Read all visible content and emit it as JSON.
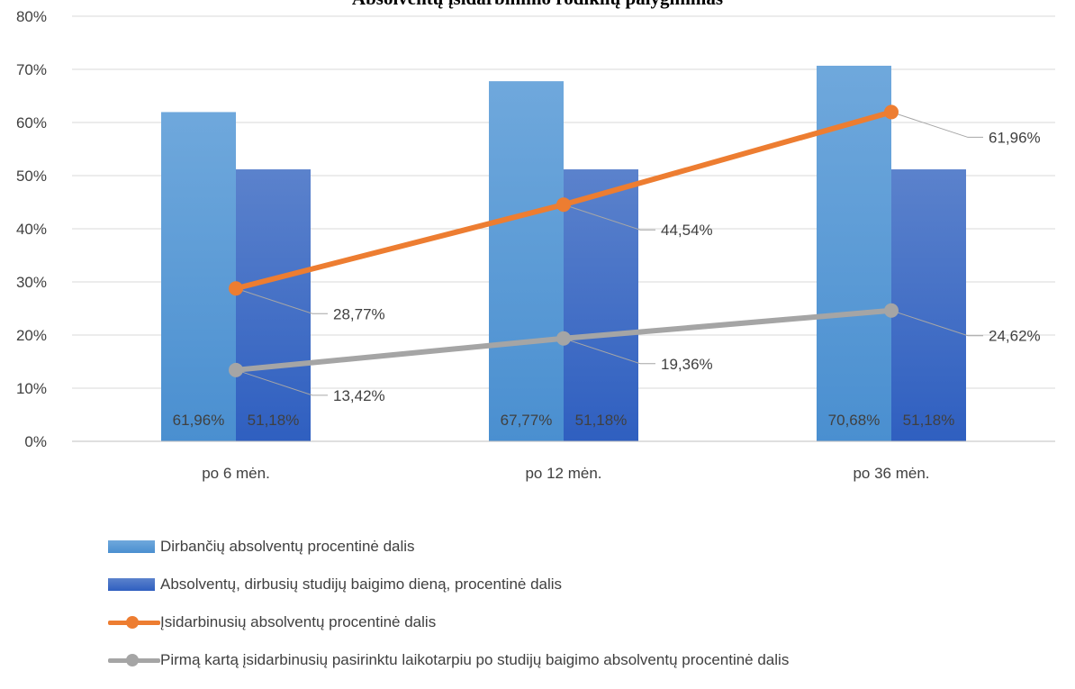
{
  "chart_data": {
    "type": "bar",
    "title": "Absolventų įsidarbinimo rodiklių palyginimas",
    "categories": [
      "po 6 mėn.",
      "po 12 mėn.",
      "po 36 mėn."
    ],
    "ylim": [
      0,
      80
    ],
    "yticks": [
      "0%",
      "10%",
      "20%",
      "30%",
      "40%",
      "50%",
      "60%",
      "70%",
      "80%"
    ],
    "grid": true,
    "legend_position": "bottom",
    "series": [
      {
        "name": "Dirbančių absolventų procentinė dalis",
        "kind": "bar",
        "color": "#5B9BD5",
        "values": [
          61.96,
          67.77,
          70.68
        ],
        "labels": [
          "61,96%",
          "67,77%",
          "70,68%"
        ]
      },
      {
        "name": "Absolventų, dirbusių studijų baigimo dieną, procentinė dalis",
        "kind": "bar",
        "color": "#4472C4",
        "values": [
          51.18,
          51.18,
          51.18
        ],
        "labels": [
          "51,18%",
          "51,18%",
          "51,18%"
        ]
      },
      {
        "name": "Įsidarbinusių absolventų procentinė dalis",
        "kind": "line",
        "color": "#ED7D31",
        "values": [
          28.77,
          44.54,
          61.96
        ],
        "labels": [
          "28,77%",
          "44,54%",
          "61,96%"
        ]
      },
      {
        "name": "Pirmą kartą įsidarbinusių pasirinktu laikotarpiu po studijų baigimo absolventų procentinė dalis",
        "kind": "line",
        "color": "#A5A5A5",
        "values": [
          13.42,
          19.36,
          24.62
        ],
        "labels": [
          "13,42%",
          "19,36%",
          "24,62%"
        ]
      }
    ]
  }
}
